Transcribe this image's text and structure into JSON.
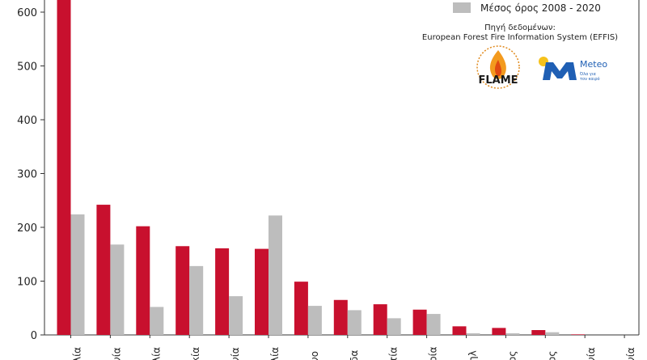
{
  "chart_data": {
    "type": "bar",
    "categories": [
      "λία",
      "νία",
      "λία",
      "κία",
      "νία",
      "λία",
      "νο",
      "δα",
      "τία",
      "ρία",
      "ηλ",
      "ος",
      "ος",
      "νία",
      "νία"
    ],
    "series": [
      {
        "name": "",
        "color": "#c8102e",
        "values": [
          640,
          242,
          202,
          165,
          161,
          160,
          99,
          65,
          57,
          47,
          16,
          13,
          9,
          1,
          0
        ]
      },
      {
        "name": "Μέσος όρος 2008 - 2020",
        "color": "#bdbdbd",
        "values": [
          224,
          168,
          52,
          128,
          72,
          222,
          54,
          46,
          31,
          39,
          3,
          3,
          5,
          0,
          0
        ]
      }
    ],
    "yticks": [
      0,
      100,
      200,
      300,
      400,
      500,
      600
    ],
    "ylim": [
      0,
      630
    ],
    "legend_position": "top-right",
    "xlabel": "",
    "ylabel": ""
  },
  "source": {
    "line1": "Πηγή δεδομένων:",
    "line2": "European Forest Fire Information System (EFFIS)"
  },
  "logos": {
    "flame": "FLAME",
    "meteo": "Meteo",
    "meteo_tagline1": "Όλα για",
    "meteo_tagline2": "τον καιρό",
    "flame_icon": "flame-icon",
    "meteo_icon": "meteo-m-icon"
  }
}
